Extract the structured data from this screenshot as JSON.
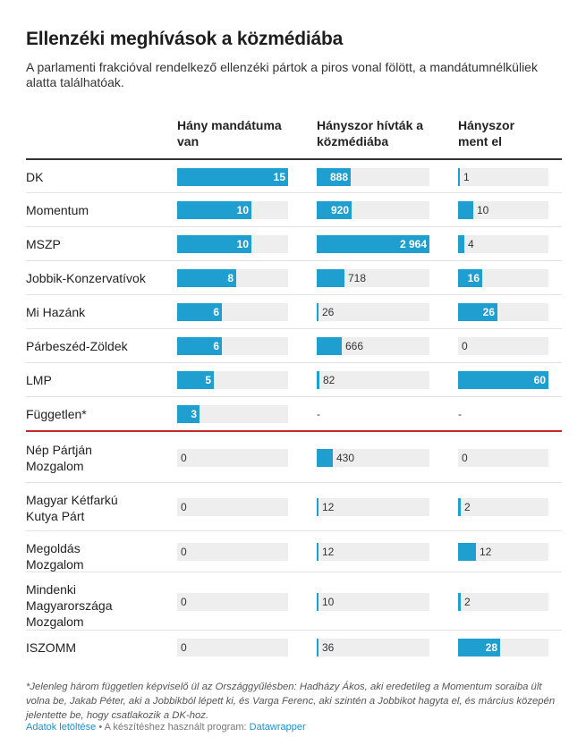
{
  "title": "Ellenzéki meghívások a közmédiába",
  "subtitle": "A parlamenti frakcióval rendelkező ellenzéki pártok a piros vonal fölött, a mandátumnélküliek alatta találhatóak.",
  "footnote": "*Jelenleg három független képviselő ül az Országgyűlésben: Hadházy Ákos, aki eredetileg a Momentum soraiba ült volna be, Jakab Péter, aki a Jobbikból lépett ki, és Varga Ferenc, aki szintén a Jobbikot hagyta el, és március közepén jelentette be, hogy csatlakozik a DK-hoz.",
  "source": {
    "download_link": "Adatok letöltése",
    "separator": " • A készítéshez használt program: ",
    "tool_link": "Datawrapper"
  },
  "colors": {
    "bar": "#1e9fd0",
    "track": "#eeeeee",
    "divider": "#c8252c"
  },
  "chart_data": {
    "type": "table",
    "title": "Ellenzéki meghívások a közmédiába",
    "columns": [
      "Hány mandátuma van",
      "Hányszor hívták a közmédiába",
      "Hányszor ment el"
    ],
    "column_max": [
      15,
      2964,
      60
    ],
    "divider_after_row": 8,
    "rows": [
      {
        "label": "DK",
        "values": [
          15,
          888,
          1
        ],
        "display": [
          "15",
          "888",
          "1"
        ]
      },
      {
        "label": "Momentum",
        "values": [
          10,
          920,
          10
        ],
        "display": [
          "10",
          "920",
          "10"
        ]
      },
      {
        "label": "MSZP",
        "values": [
          10,
          2964,
          4
        ],
        "display": [
          "10",
          "2 964",
          "4"
        ]
      },
      {
        "label": "Jobbik-Konzervatívok",
        "values": [
          8,
          718,
          16
        ],
        "display": [
          "8",
          "718",
          "16"
        ]
      },
      {
        "label": "Mi Hazánk",
        "values": [
          6,
          26,
          26
        ],
        "display": [
          "6",
          "26",
          "26"
        ]
      },
      {
        "label": "Párbeszéd-Zöldek",
        "values": [
          6,
          666,
          0
        ],
        "display": [
          "6",
          "666",
          "0"
        ]
      },
      {
        "label": "LMP",
        "values": [
          5,
          82,
          60
        ],
        "display": [
          "5",
          "82",
          "60"
        ]
      },
      {
        "label": "Független*",
        "values": [
          3,
          null,
          null
        ],
        "display": [
          "3",
          "-",
          "-"
        ]
      },
      {
        "label": "Nép Pártján Mozgalom",
        "values": [
          0,
          430,
          0
        ],
        "display": [
          "0",
          "430",
          "0"
        ]
      },
      {
        "label": "Magyar Kétfarkú Kutya Párt",
        "values": [
          0,
          12,
          2
        ],
        "display": [
          "0",
          "12",
          "2"
        ]
      },
      {
        "label": "Megoldás Mozgalom",
        "values": [
          0,
          12,
          12
        ],
        "display": [
          "0",
          "12",
          "12"
        ]
      },
      {
        "label": "Mindenki Magyarországa Mozgalom",
        "values": [
          0,
          10,
          2
        ],
        "display": [
          "0",
          "10",
          "2"
        ]
      },
      {
        "label": "ISZOMM",
        "values": [
          0,
          36,
          28
        ],
        "display": [
          "0",
          "36",
          "28"
        ]
      }
    ]
  }
}
